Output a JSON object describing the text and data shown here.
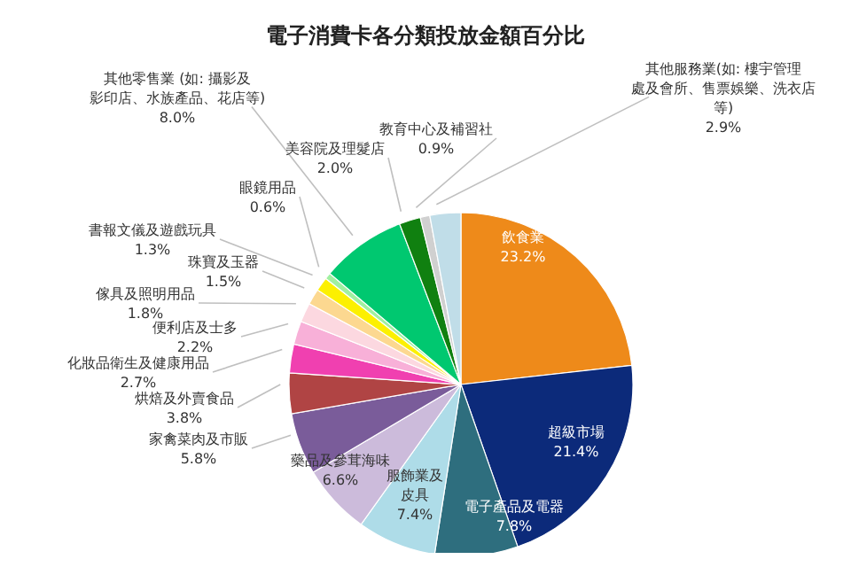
{
  "chart_data": {
    "type": "pie",
    "title": "電子消費卡各分類投放金額百分比",
    "categories": [
      "飲食業",
      "超級市場",
      "電子產品及電器",
      "服飾業及皮具",
      "藥品及參茸海味",
      "家禽菜肉及市販",
      "烘焙及外賣食品",
      "化妝品衛生及健康用品",
      "便利店及士多",
      "傢具及照明用品",
      "珠寶及玉器",
      "書報文儀及遊戲玩具",
      "眼鏡用品",
      "其他零售業 (如: 攝影及影印店、水族產品、花店等)",
      "美容院及理髮店",
      "教育中心及補習社",
      "其他服務業(如: 樓宇管理處及會所、售票娛樂、洗衣店等)"
    ],
    "values": [
      23.2,
      21.4,
      7.8,
      7.4,
      6.6,
      5.8,
      3.8,
      2.7,
      2.2,
      1.8,
      1.5,
      1.3,
      0.6,
      8.0,
      2.0,
      0.9,
      2.9
    ],
    "value_labels": [
      "23.2%",
      "21.4%",
      "7.8%",
      "7.4%",
      "6.6%",
      "5.8%",
      "3.8%",
      "2.7%",
      "2.2%",
      "1.8%",
      "1.5%",
      "1.3%",
      "0.6%",
      "8.0%",
      "2.0%",
      "0.9%",
      "2.9%"
    ],
    "colors": [
      "#ee8a1a",
      "#0c2a7a",
      "#2e6e7e",
      "#aedce8",
      "#ccbbdb",
      "#7a5c9a",
      "#b04444",
      "#f040b0",
      "#f8b0d8",
      "#fcd8e0",
      "#fcd890",
      "#fcf000",
      "#a0f0a0",
      "#00c870",
      "#108010",
      "#d0d0d0",
      "#c0dde8"
    ],
    "legend": false
  }
}
